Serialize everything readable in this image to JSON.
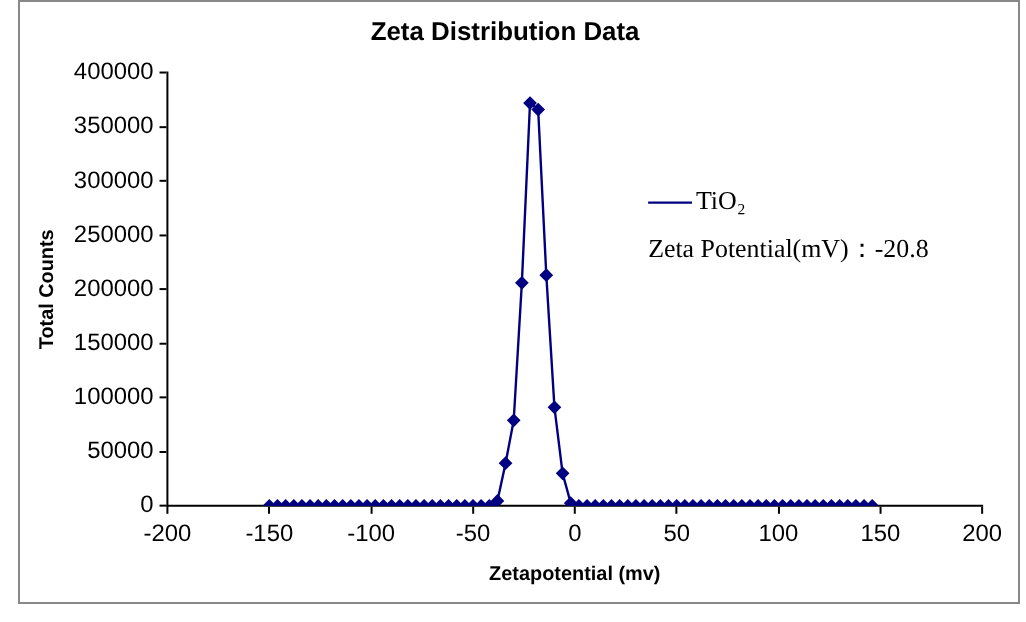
{
  "chart_data": {
    "type": "line",
    "title": "Zeta Distribution Data",
    "xlabel": "Zetapotential (mv)",
    "ylabel": "Total Counts",
    "x": [
      -150,
      -146,
      -142,
      -138,
      -134,
      -130,
      -126,
      -122,
      -118,
      -114,
      -110,
      -106,
      -102,
      -98,
      -94,
      -90,
      -86,
      -82,
      -78,
      -74,
      -70,
      -66,
      -62,
      -58,
      -54,
      -50,
      -46,
      -42,
      -38,
      -34,
      -30,
      -26,
      -22,
      -18,
      -14,
      -10,
      -6,
      -2,
      2,
      6,
      10,
      14,
      18,
      22,
      26,
      30,
      34,
      38,
      42,
      46,
      50,
      54,
      58,
      62,
      66,
      70,
      74,
      78,
      82,
      86,
      90,
      94,
      98,
      102,
      106,
      110,
      114,
      118,
      122,
      126,
      130,
      134,
      138,
      142,
      146
    ],
    "series": [
      {
        "name": "TiO₂",
        "color": "#000080",
        "values": [
          0,
          0,
          0,
          0,
          0,
          0,
          0,
          0,
          0,
          0,
          0,
          0,
          0,
          0,
          0,
          0,
          0,
          0,
          0,
          0,
          0,
          0,
          0,
          0,
          0,
          0,
          0,
          0,
          4500,
          39400,
          79000,
          206000,
          372000,
          366000,
          213000,
          91000,
          30000,
          2500,
          0,
          0,
          0,
          0,
          0,
          0,
          0,
          0,
          0,
          0,
          0,
          0,
          0,
          0,
          0,
          0,
          0,
          0,
          0,
          0,
          0,
          0,
          0,
          0,
          0,
          0,
          0,
          0,
          0,
          0,
          0,
          0,
          0,
          0,
          0,
          0,
          0
        ]
      }
    ],
    "xlim": [
      -200,
      200
    ],
    "xticks": [
      -200,
      -150,
      -100,
      -50,
      0,
      50,
      100,
      150,
      200
    ],
    "ylim": [
      0,
      400000
    ],
    "yticks": [
      0,
      50000,
      100000,
      150000,
      200000,
      250000,
      300000,
      350000,
      400000
    ],
    "annotations": [
      "Zeta Potential(mV)：-20.8"
    ],
    "legend": "right",
    "grid": false,
    "marker": "diamond",
    "line_style": "solid"
  }
}
